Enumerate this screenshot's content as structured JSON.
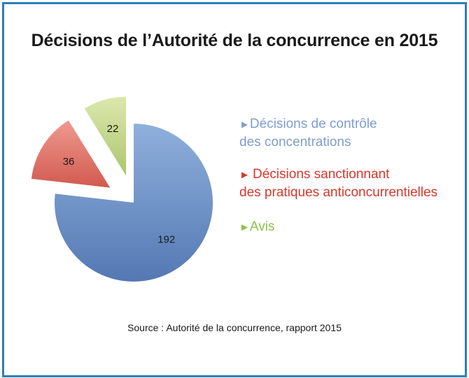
{
  "title": "Décisions de l’Autorité de la concurrence en 2015",
  "source": "Source : Autorité de la concurrence, rapport 2015",
  "legend": [
    {
      "arrow": "►",
      "line1": "Décisions de contrôle",
      "line2": "des concentrations",
      "color": "#7f9dcf"
    },
    {
      "arrow": "► ",
      "line1": "Décisions sanctionnant",
      "line2": "des pratiques anticoncurrentielles",
      "color": "#d9362b"
    },
    {
      "arrow": "►",
      "line1": "Avis",
      "line2": "",
      "color": "#8cc14a"
    }
  ],
  "chart_data": {
    "type": "pie",
    "title": "Décisions de l’Autorité de la concurrence en 2015",
    "categories": [
      "Décisions de contrôle des concentrations",
      "Décisions sanctionnant des pratiques anticoncurrentielles",
      "Avis"
    ],
    "values": [
      192,
      36,
      22
    ],
    "labels": [
      "192",
      "36",
      "22"
    ],
    "exploded": [
      false,
      true,
      true
    ],
    "colors": [
      "#5f86c0",
      "#d8665c",
      "#b5cc7e"
    ],
    "legend_position": "right"
  }
}
